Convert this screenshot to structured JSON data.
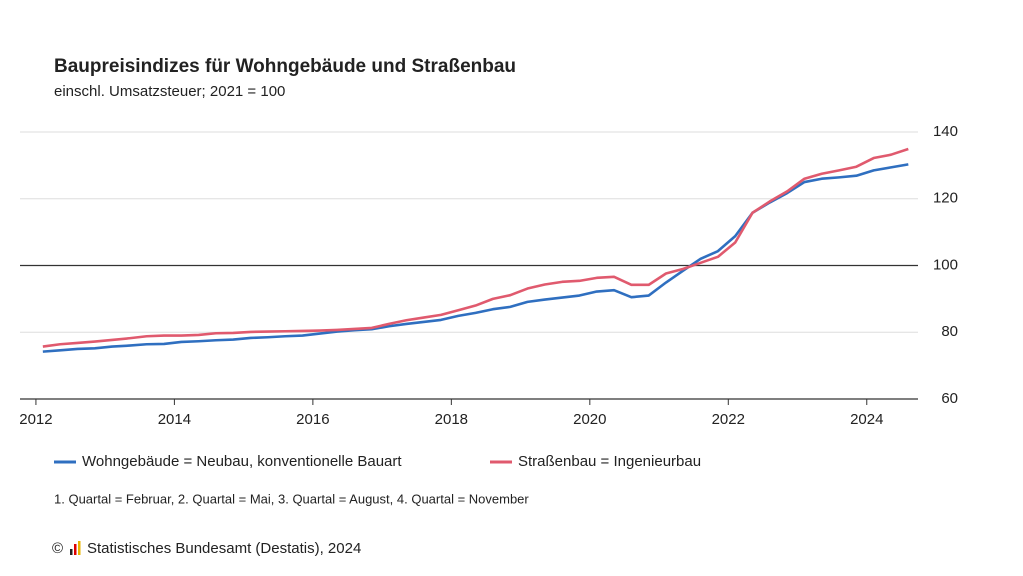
{
  "chart_data": {
    "type": "line",
    "title": "Baupreisindizes für Wohngebäude und Straßenbau",
    "subtitle": "einschl. Umsatzsteuer; 2021 = 100",
    "x": [
      2012.1,
      2012.35,
      2012.6,
      2012.85,
      2013.1,
      2013.35,
      2013.6,
      2013.85,
      2014.1,
      2014.35,
      2014.6,
      2014.85,
      2015.1,
      2015.35,
      2015.6,
      2015.85,
      2016.1,
      2016.35,
      2016.6,
      2016.85,
      2017.1,
      2017.35,
      2017.6,
      2017.85,
      2018.1,
      2018.35,
      2018.6,
      2018.85,
      2019.1,
      2019.35,
      2019.6,
      2019.85,
      2020.1,
      2020.35,
      2020.6,
      2020.85,
      2021.1,
      2021.35,
      2021.6,
      2021.85,
      2022.1,
      2022.35,
      2022.6,
      2022.85,
      2023.1,
      2023.35,
      2023.6,
      2023.85,
      2024.1,
      2024.35,
      2024.6
    ],
    "series": [
      {
        "name": "Wohngebäude = Neubau, konventionelle Bauart",
        "color": "#2f6fc0",
        "values": [
          74.2,
          74.6,
          75.0,
          75.2,
          75.7,
          76.0,
          76.4,
          76.5,
          77.1,
          77.3,
          77.6,
          77.8,
          78.3,
          78.5,
          78.8,
          79.0,
          79.6,
          80.2,
          80.6,
          80.9,
          81.8,
          82.5,
          83.1,
          83.7,
          84.9,
          85.8,
          86.9,
          87.6,
          89.1,
          89.8,
          90.4,
          91.0,
          92.2,
          92.6,
          90.5,
          91.0,
          94.9,
          98.5,
          102.0,
          104.3,
          108.8,
          115.8,
          118.9,
          121.7,
          125.0,
          126.0,
          126.4,
          126.9,
          128.5,
          129.4,
          130.3
        ]
      },
      {
        "name": "Straßenbau = Ingenieurbau",
        "color": "#e05a6e",
        "values": [
          75.7,
          76.4,
          76.8,
          77.2,
          77.7,
          78.2,
          78.8,
          79.0,
          79.0,
          79.2,
          79.7,
          79.8,
          80.1,
          80.2,
          80.3,
          80.4,
          80.5,
          80.7,
          81.0,
          81.3,
          82.5,
          83.6,
          84.4,
          85.2,
          86.6,
          88.0,
          90.0,
          91.1,
          93.1,
          94.3,
          95.1,
          95.4,
          96.3,
          96.6,
          94.2,
          94.2,
          97.6,
          99.0,
          100.8,
          102.6,
          106.9,
          115.8,
          119.2,
          122.2,
          126.0,
          127.5,
          128.5,
          129.6,
          132.2,
          133.2,
          134.9
        ]
      }
    ],
    "xlim": [
      2011.77,
      2024.74
    ],
    "xticks": [
      2012,
      2014,
      2016,
      2018,
      2020,
      2022,
      2024
    ],
    "ylim": [
      60,
      140
    ],
    "yticks": [
      60,
      80,
      100,
      120,
      140
    ],
    "reference_line": 100,
    "grid": true,
    "footnote": "1. Quartal = Februar, 2. Quartal = Mai, 3. Quartal = August, 4. Quartal = November",
    "copyright": "©",
    "source": "Statistisches Bundesamt (Destatis), 2024"
  }
}
